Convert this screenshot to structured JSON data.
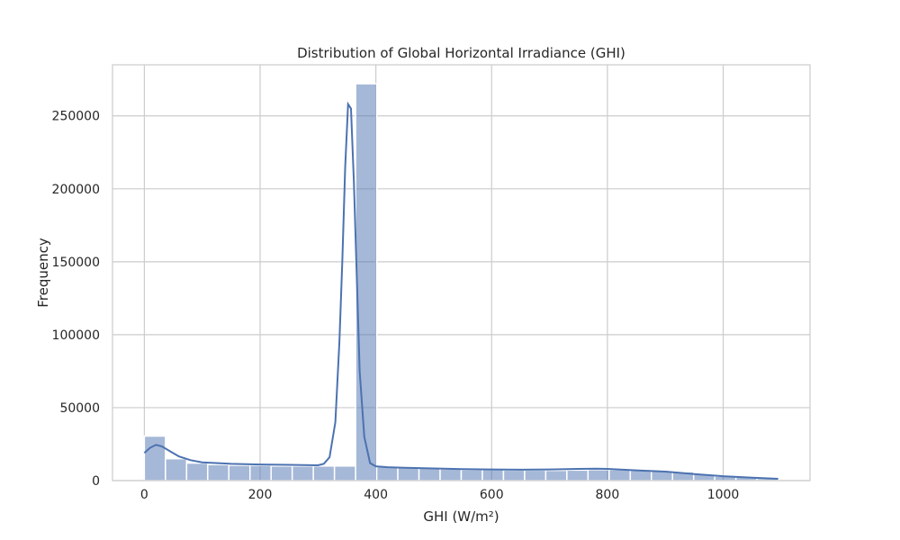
{
  "chart_data": {
    "type": "histogram",
    "title": "Distribution of Global Horizontal Irradiance (GHI)",
    "xlabel": "GHI (W/m²)",
    "ylabel": "Frequency",
    "xlim": [
      -55,
      1150
    ],
    "ylim": [
      0,
      285000
    ],
    "xticks": [
      0,
      200,
      400,
      600,
      800,
      1000
    ],
    "yticks": [
      0,
      50000,
      100000,
      150000,
      200000,
      250000
    ],
    "grid": true,
    "bar_color": "#4c72b0",
    "line_color": "#4c72b0",
    "bins": {
      "start": 0,
      "width": 36.5,
      "counts": [
        30500,
        15000,
        12000,
        11000,
        10500,
        10500,
        10000,
        10000,
        10000,
        10000,
        272000,
        9500,
        9000,
        8500,
        8000,
        7500,
        7500,
        7200,
        7200,
        7000,
        7200,
        7500,
        7500,
        7000,
        6500,
        6000,
        4500,
        3000,
        2500,
        1500
      ]
    },
    "kde": {
      "x": [
        0,
        10,
        20,
        30,
        45,
        60,
        80,
        100,
        150,
        200,
        250,
        300,
        310,
        320,
        330,
        337,
        342,
        347,
        352,
        357,
        362,
        367,
        372,
        380,
        390,
        400,
        420,
        450,
        500,
        550,
        600,
        650,
        700,
        750,
        780,
        800,
        850,
        900,
        950,
        1000,
        1050,
        1095
      ],
      "y": [
        19000,
        22500,
        24500,
        23500,
        20000,
        16500,
        14000,
        12500,
        11500,
        11000,
        10800,
        10500,
        11500,
        16000,
        40000,
        95000,
        150000,
        215000,
        258000,
        255000,
        205000,
        140000,
        75000,
        30000,
        12000,
        9800,
        9200,
        8800,
        8300,
        7900,
        7600,
        7500,
        7600,
        8000,
        8200,
        8000,
        7000,
        6200,
        4500,
        3000,
        2000,
        1200
      ]
    }
  }
}
